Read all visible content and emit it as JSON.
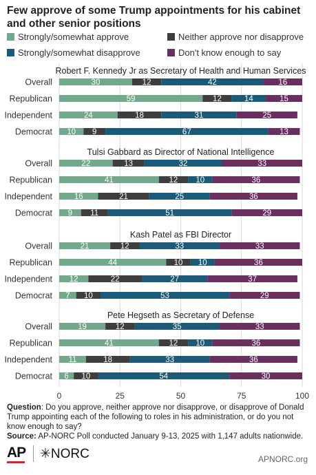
{
  "title": "Few approve of some Trump appointments for his cabinet and other senior positions",
  "colors": {
    "approve": "#72a98a",
    "neither": "#3e3e3e",
    "disapprove": "#1b5a78",
    "dontknow": "#6b2f5f"
  },
  "legend": [
    {
      "key": "approve",
      "label": "Strongly/somewhat approve"
    },
    {
      "key": "neither",
      "label": "Neither approve nor disapprove"
    },
    {
      "key": "disapprove",
      "label": "Strongly/somewhat disapprove"
    },
    {
      "key": "dontknow",
      "label": "Don't know enough to say"
    }
  ],
  "chart_data": {
    "type": "bar",
    "orientation": "horizontal",
    "stacked": true,
    "xlim": [
      0,
      100
    ],
    "x_ticks": [
      "0",
      "25",
      "50",
      "75",
      "100"
    ],
    "series_order": [
      "approve",
      "neither",
      "disapprove",
      "dontknow"
    ],
    "groups": [
      {
        "title": "Robert F. Kennedy Jr as Secretary of Health and Human Services",
        "rows": [
          {
            "label": "Overall",
            "values": [
              30,
              12,
              42,
              16
            ]
          },
          {
            "label": "Republican",
            "values": [
              59,
              12,
              14,
              15
            ]
          },
          {
            "label": "Independent",
            "values": [
              24,
              18,
              31,
              25
            ]
          },
          {
            "label": "Democrat",
            "values": [
              10,
              9,
              67,
              13
            ]
          }
        ]
      },
      {
        "title": "Tulsi Gabbard as Director of National Intelligence",
        "rows": [
          {
            "label": "Overall",
            "values": [
              22,
              13,
              32,
              33
            ]
          },
          {
            "label": "Republican",
            "values": [
              41,
              12,
              10,
              36
            ]
          },
          {
            "label": "Independent",
            "values": [
              16,
              21,
              25,
              36
            ]
          },
          {
            "label": "Democrat",
            "values": [
              9,
              11,
              51,
              29
            ]
          }
        ]
      },
      {
        "title": "Kash Patel as FBI Director",
        "rows": [
          {
            "label": "Overall",
            "values": [
              21,
              12,
              33,
              33
            ]
          },
          {
            "label": "Republican",
            "values": [
              44,
              10,
              10,
              36
            ]
          },
          {
            "label": "Independent",
            "values": [
              12,
              22,
              27,
              37
            ]
          },
          {
            "label": "Democrat",
            "values": [
              7,
              10,
              53,
              29
            ]
          }
        ]
      },
      {
        "title": "Pete Hegseth as Secretary of Defense",
        "rows": [
          {
            "label": "Overall",
            "values": [
              19,
              12,
              35,
              33
            ]
          },
          {
            "label": "Republican",
            "values": [
              41,
              12,
              10,
              36
            ]
          },
          {
            "label": "Independent",
            "values": [
              11,
              18,
              33,
              36
            ]
          },
          {
            "label": "Democrat",
            "values": [
              6,
              10,
              54,
              30
            ]
          }
        ]
      }
    ]
  },
  "footnote": {
    "question_label": "Question",
    "question_text": ": Do you approve, neither approve nor disapprove, or disapprove of Donald Trump appointing each of the following to roles in his administration, or do you not know enough to say?",
    "source_label": "Source:",
    "source_text": " AP-NORC Poll conducted January 9-13, 2025 with 1,147 adults nationwide."
  },
  "branding": {
    "ap": "AP",
    "norc": "✳NORC",
    "site": "APNORC.org"
  }
}
